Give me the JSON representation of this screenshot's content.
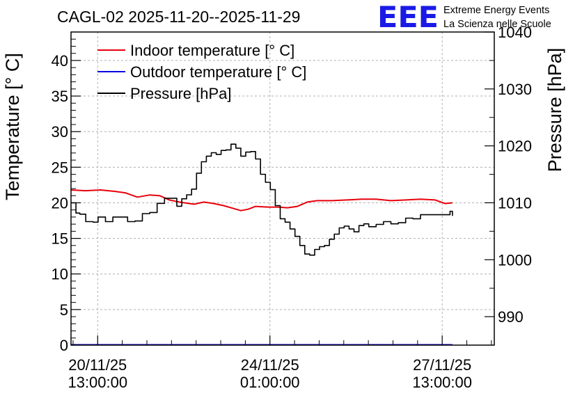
{
  "colors": {
    "indoor": "#e8000b",
    "outdoor": "#0000e6",
    "pressure": "#000000",
    "brand": "#1a1ae6"
  },
  "brand": {
    "logo": "EEE",
    "line1": "Extreme Energy Events",
    "line2": "La Scienza nelle Scuole"
  },
  "chart_data": {
    "type": "line",
    "title": "CAGL-02 2025-11-20--2025-11-29",
    "ylabel": "Temperature [° C]",
    "y2label": "Pressure [hPa]",
    "ylim": [
      0,
      44
    ],
    "y2lim": [
      985,
      1040
    ],
    "yticks": [
      0,
      5,
      10,
      15,
      20,
      25,
      30,
      35,
      40
    ],
    "y2ticks": [
      990,
      1000,
      1010,
      1020,
      1030,
      1040
    ],
    "xlim": [
      0,
      8.6
    ],
    "xunit": "days since 2025-11-20 00:00",
    "xticks": [
      {
        "x": 0.5417,
        "line1": "20/11/25",
        "line2": "13:00:00"
      },
      {
        "x": 4.0417,
        "line1": "24/11/25",
        "line2": "01:00:00"
      },
      {
        "x": 7.5417,
        "line1": "27/11/25",
        "line2": "13:00:00"
      }
    ],
    "grid": true,
    "legend": [
      {
        "label": "Indoor temperature [° C]",
        "series": "indoor"
      },
      {
        "label": "Outdoor temperature [° C]",
        "series": "outdoor"
      },
      {
        "label": "Pressure [hPa]",
        "series": "pressure"
      }
    ],
    "series": [
      {
        "name": "indoor",
        "axis": "left",
        "x": [
          0.0,
          0.3,
          0.6,
          0.9,
          1.1,
          1.35,
          1.6,
          1.8,
          2.0,
          2.2,
          2.5,
          2.7,
          2.9,
          3.1,
          3.3,
          3.45,
          3.6,
          3.75,
          4.0,
          4.2,
          4.4,
          4.6,
          4.8,
          5.0,
          5.3,
          5.6,
          5.9,
          6.2,
          6.5,
          6.8,
          7.1,
          7.4,
          7.6,
          7.75
        ],
        "y": [
          21.8,
          21.7,
          21.8,
          21.6,
          21.4,
          20.8,
          21.1,
          21.0,
          20.4,
          20.1,
          19.8,
          20.1,
          19.9,
          19.6,
          19.2,
          18.9,
          19.1,
          19.5,
          19.4,
          19.4,
          19.3,
          19.5,
          20.1,
          20.3,
          20.3,
          20.4,
          20.5,
          20.5,
          20.3,
          20.4,
          20.5,
          20.4,
          19.9,
          20.0
        ]
      },
      {
        "name": "outdoor",
        "axis": "left",
        "x": [
          0.0,
          7.75
        ],
        "y": [
          0.05,
          0.05
        ]
      },
      {
        "name": "pressure",
        "axis": "right",
        "x": [
          0.0,
          0.1,
          0.18,
          0.3,
          0.45,
          0.55,
          0.7,
          0.85,
          1.0,
          1.15,
          1.3,
          1.45,
          1.6,
          1.75,
          1.9,
          2.05,
          2.15,
          2.25,
          2.35,
          2.45,
          2.55,
          2.65,
          2.75,
          2.85,
          2.95,
          3.05,
          3.15,
          3.25,
          3.35,
          3.45,
          3.55,
          3.65,
          3.75,
          3.85,
          3.95,
          4.05,
          4.15,
          4.25,
          4.35,
          4.45,
          4.55,
          4.65,
          4.75,
          4.85,
          4.95,
          5.05,
          5.15,
          5.25,
          5.35,
          5.45,
          5.55,
          5.65,
          5.75,
          5.85,
          5.95,
          6.05,
          6.2,
          6.35,
          6.5,
          6.65,
          6.8,
          6.95,
          7.1,
          7.25,
          7.4,
          7.55,
          7.7,
          7.75
        ],
        "y": [
          1010.0,
          1008.2,
          1008.0,
          1006.7,
          1006.6,
          1007.5,
          1006.7,
          1007.5,
          1007.5,
          1006.7,
          1006.8,
          1008.1,
          1008.3,
          1009.9,
          1010.8,
          1010.8,
          1009.4,
          1010.7,
          1011.4,
          1012.4,
          1015.2,
          1017.2,
          1018.2,
          1018.8,
          1018.5,
          1019.2,
          1019.3,
          1020.3,
          1019.6,
          1018.2,
          1018.9,
          1019.0,
          1017.7,
          1015.0,
          1013.6,
          1012.3,
          1009.5,
          1007.2,
          1006.6,
          1005.4,
          1004.1,
          1002.5,
          1001.0,
          1000.8,
          1001.8,
          1002.3,
          1002.5,
          1003.6,
          1004.5,
          1005.6,
          1005.9,
          1005.4,
          1004.9,
          1006.0,
          1006.3,
          1005.8,
          1006.2,
          1006.7,
          1006.3,
          1006.5,
          1007.3,
          1007.2,
          1007.9,
          1007.9,
          1007.9,
          1007.9,
          1008.5,
          1007.7
        ]
      }
    ]
  }
}
